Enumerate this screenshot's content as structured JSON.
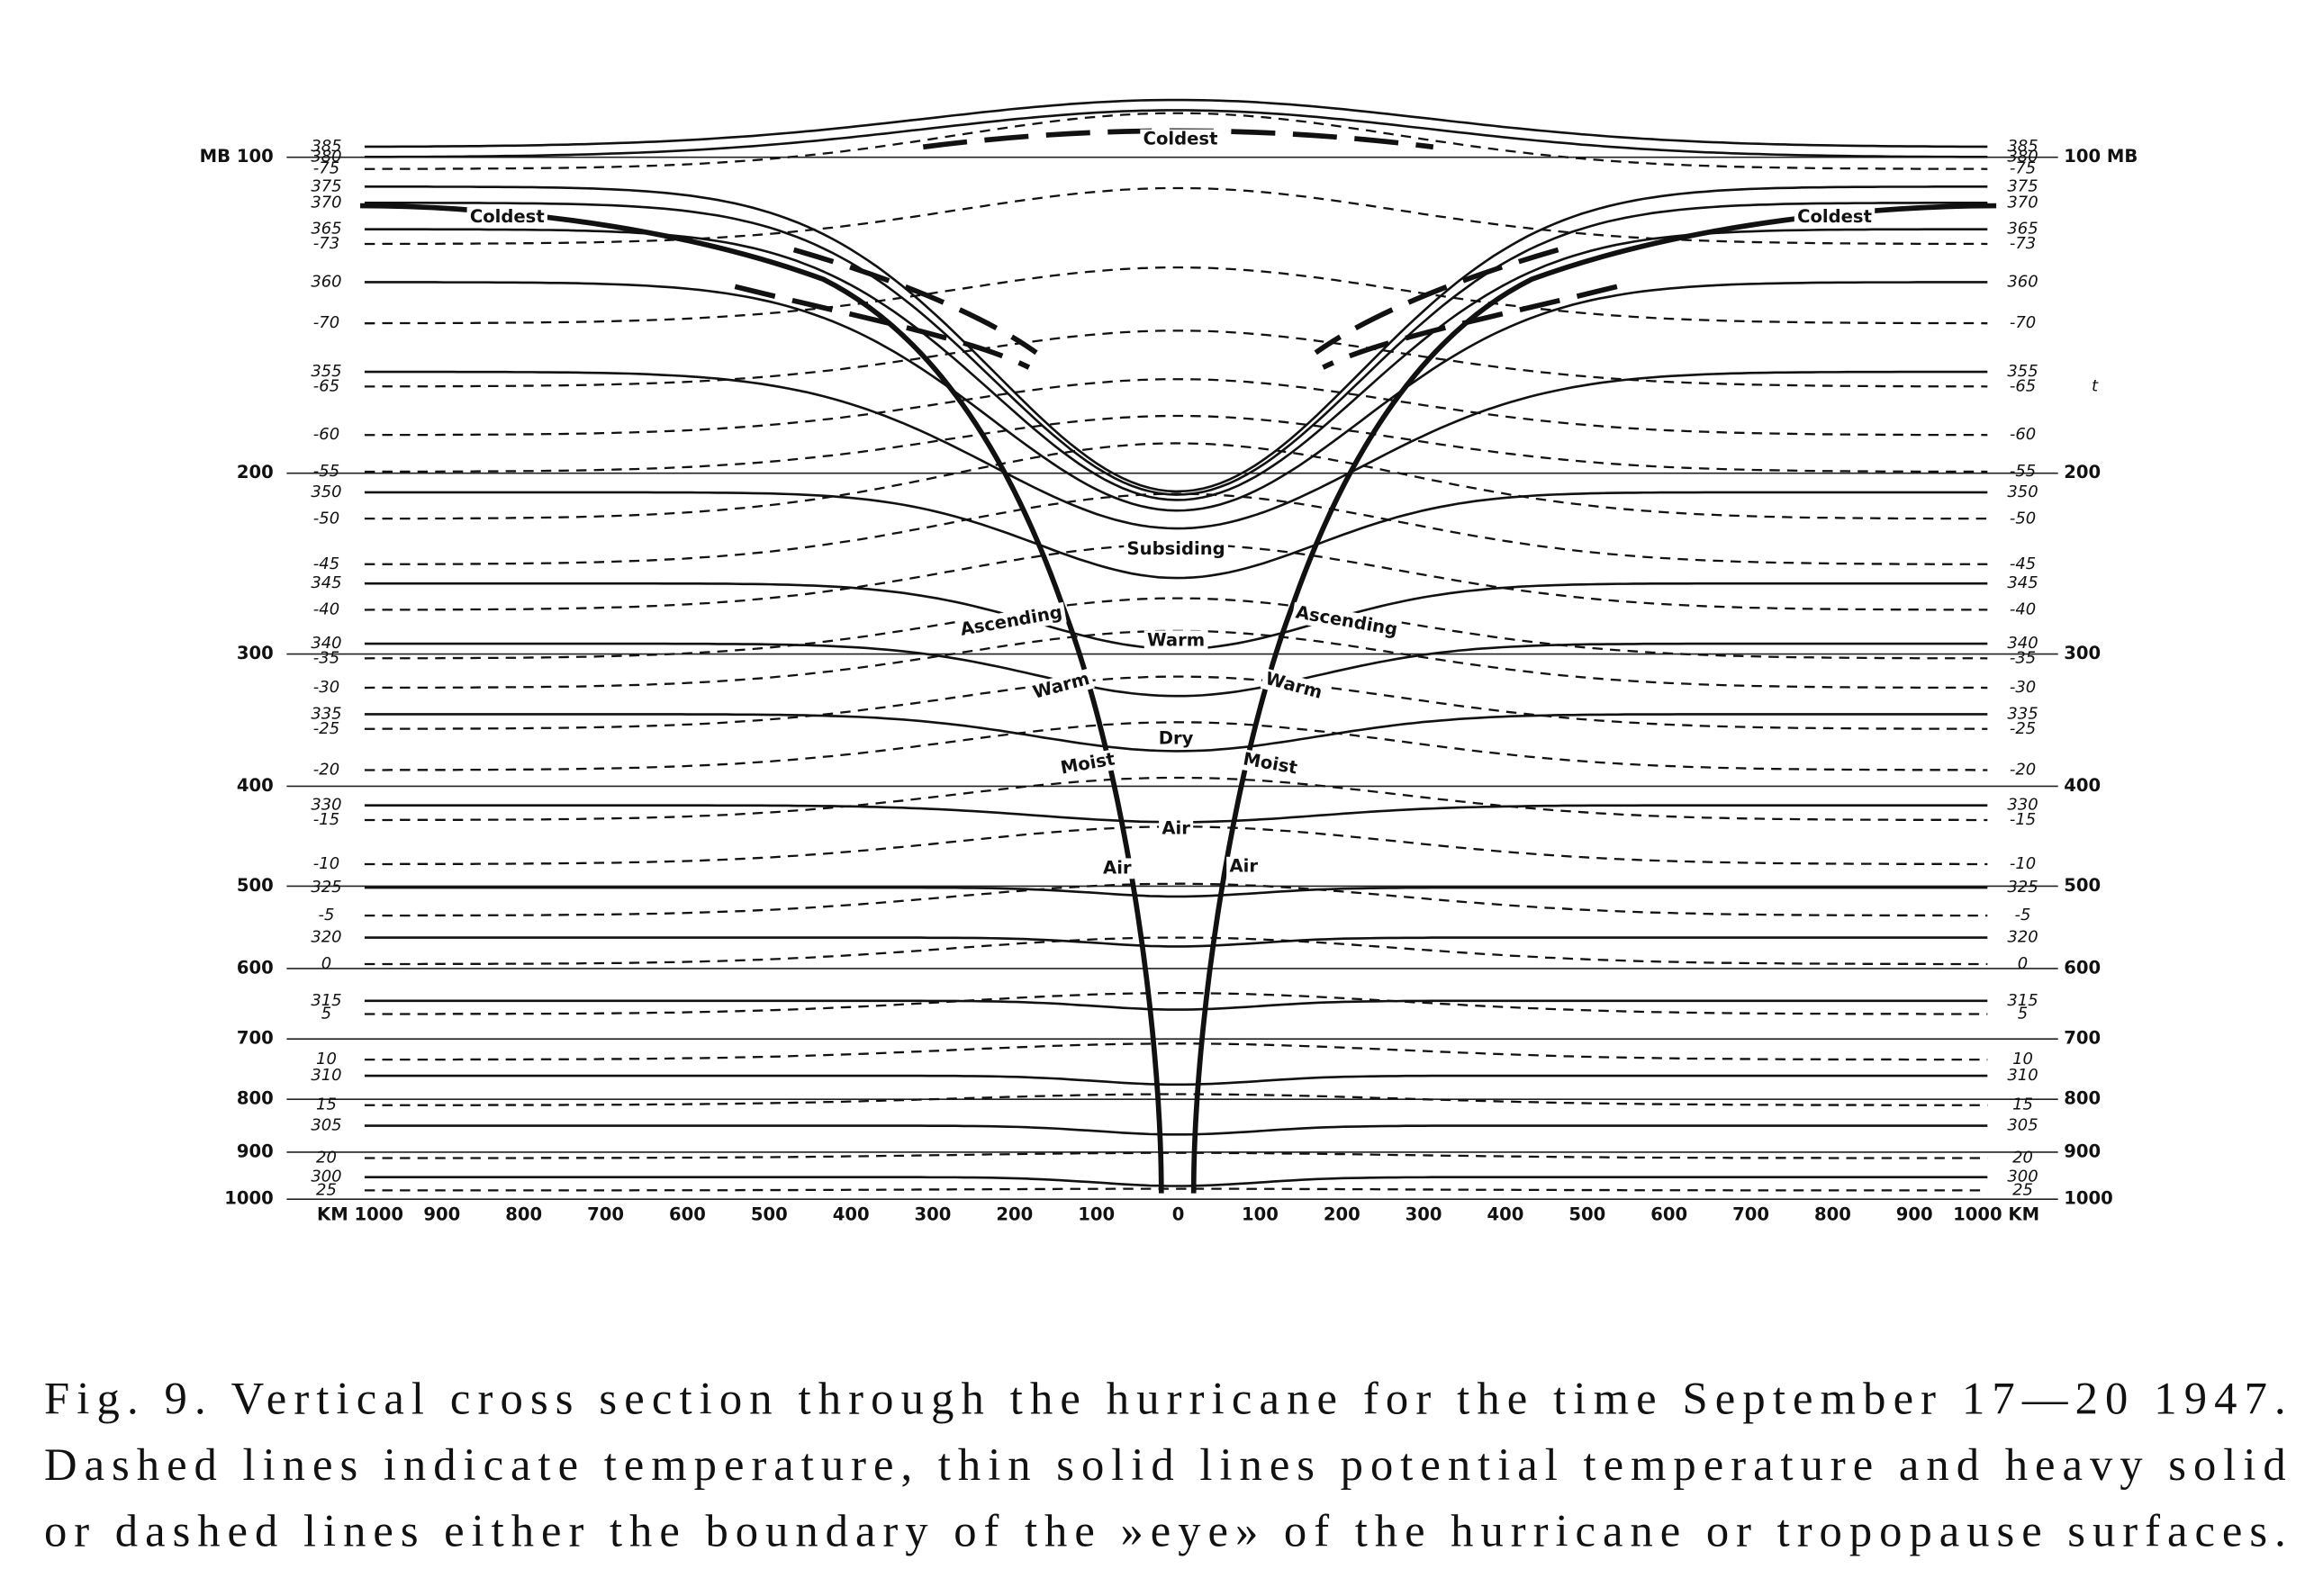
{
  "figure": {
    "left_axis_labels": [
      "MB 100",
      "200",
      "300",
      "400",
      "500",
      "600",
      "700",
      "800",
      "900",
      "1000"
    ],
    "right_axis_labels": [
      "100 MB",
      "200",
      "300",
      "400",
      "500",
      "600",
      "700",
      "800",
      "900",
      "1000"
    ],
    "x_axis_labels": [
      "KM 1000",
      "900",
      "800",
      "700",
      "600",
      "500",
      "400",
      "300",
      "200",
      "100",
      "0",
      "100",
      "200",
      "300",
      "400",
      "500",
      "600",
      "700",
      "800",
      "900",
      "1000 KM"
    ],
    "left_isoline_labels": [
      "385",
      "380",
      "-75",
      "375",
      "370",
      "365",
      "-73",
      "360",
      "-70",
      "355",
      "-65",
      "-60",
      "-55",
      "350",
      "-50",
      "-45",
      "345",
      "-40",
      "340",
      "-35",
      "-30",
      "335",
      "-25",
      "-20",
      "330",
      "-15",
      "-10",
      "325",
      "-5",
      "320",
      "0",
      "315",
      "5",
      "10",
      "310",
      "15",
      "305",
      "20",
      "300",
      "25"
    ],
    "right_isoline_labels": [
      "385",
      "380",
      "-75",
      "375",
      "370",
      "365",
      "-73",
      "360",
      "-70",
      "355",
      "-65",
      "-60",
      "-55",
      "350",
      "-50",
      "-45",
      "345",
      "-40",
      "340",
      "-35",
      "-30",
      "335",
      "-25",
      "-20",
      "330",
      "-15",
      "-10",
      "325",
      "-5",
      "320",
      "0",
      "315",
      "5",
      "10",
      "310",
      "15",
      "305",
      "20",
      "300",
      "25"
    ],
    "right_marker": "t",
    "region_labels": [
      "Coldest",
      "Coldest",
      "Coldest",
      "Subsiding",
      "Ascending",
      "Ascending",
      "Warm",
      "Warm",
      "Warm",
      "Dry",
      "Moist",
      "Moist",
      "Air",
      "Air",
      "Air"
    ]
  },
  "caption": {
    "lines": [
      "Fig. 9. Vertical cross section through the hurricane for the time September 17—20 1947.",
      "Dashed lines indicate temperature, thin solid lines potential temperature and heavy solid",
      "or dashed lines either the boundary of the »eye» of the hurricane or tropopause surfaces."
    ]
  }
}
